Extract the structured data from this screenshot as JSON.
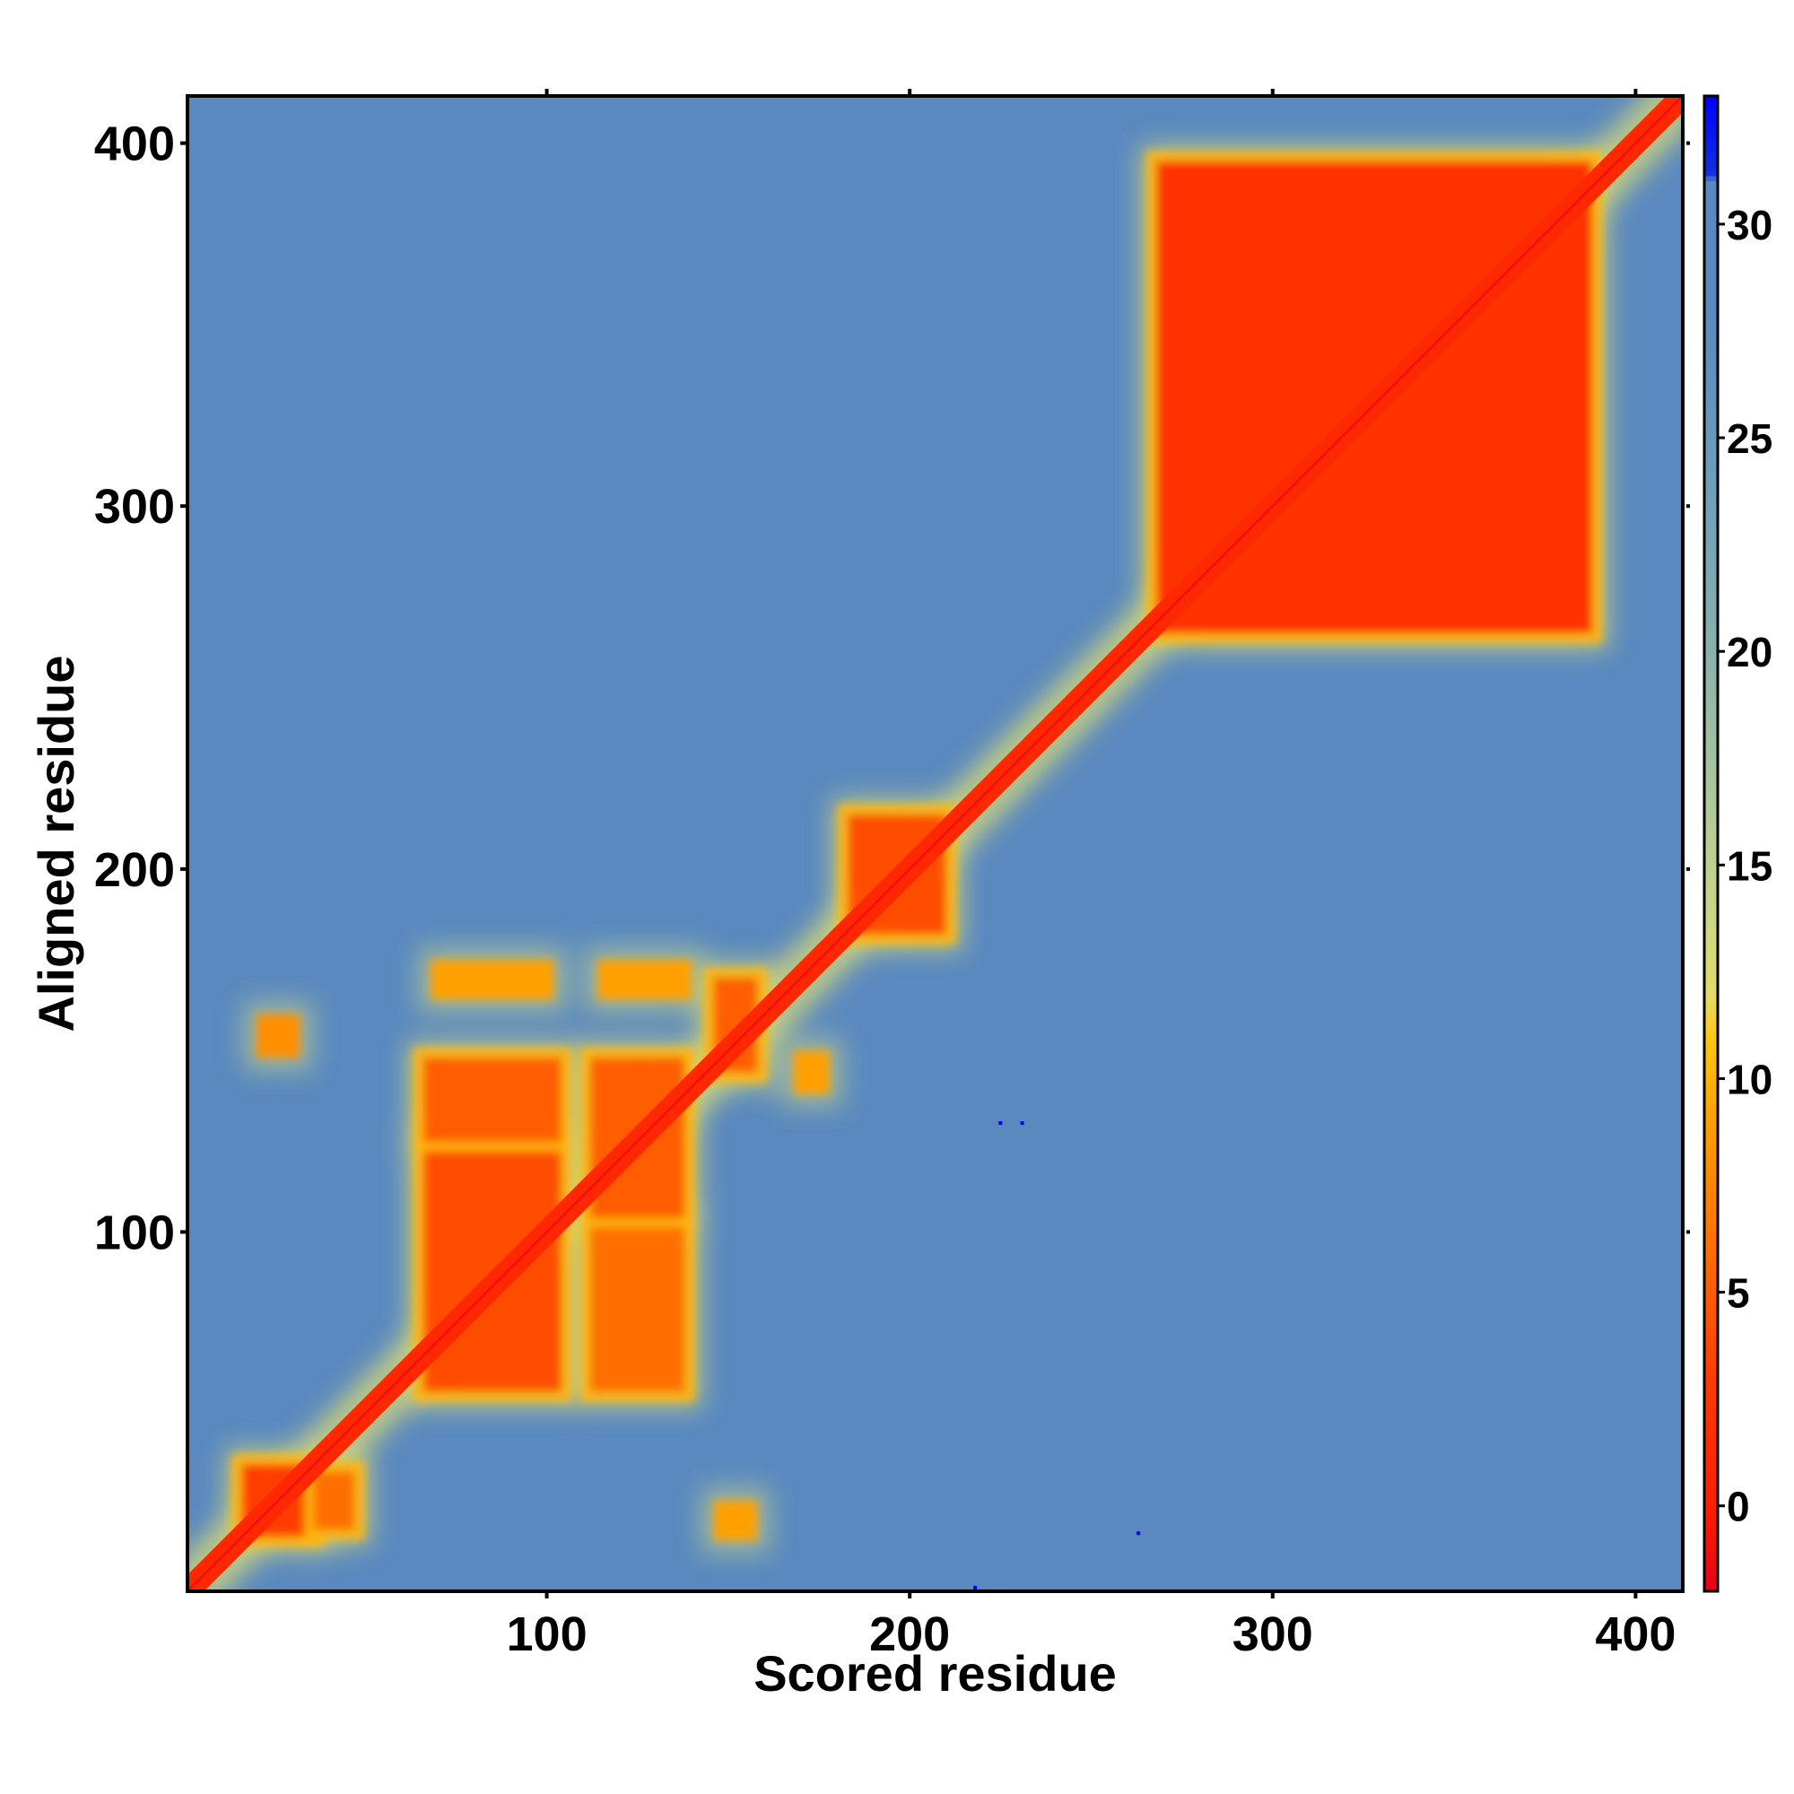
{
  "chart_data": {
    "type": "heatmap",
    "title": "",
    "xlabel": "Scored residue",
    "ylabel": "Aligned residue",
    "xlim": [
      1,
      413
    ],
    "ylim": [
      1,
      413
    ],
    "x_ticks": [
      100,
      200,
      300,
      400
    ],
    "y_ticks": [
      100,
      200,
      300,
      400
    ],
    "colorbar": {
      "range": [
        -2,
        33
      ],
      "ticks": [
        0,
        5,
        10,
        15,
        20,
        25,
        30
      ],
      "colors": [
        {
          "value": -2,
          "color": "#e8001c"
        },
        {
          "value": 0,
          "color": "#ff1e00"
        },
        {
          "value": 3,
          "color": "#ff3c00"
        },
        {
          "value": 6,
          "color": "#ff6e00"
        },
        {
          "value": 9,
          "color": "#ffa000"
        },
        {
          "value": 11,
          "color": "#ffc814"
        },
        {
          "value": 12,
          "color": "#e2dc6a"
        },
        {
          "value": 14,
          "color": "#c9d687"
        },
        {
          "value": 17,
          "color": "#a8c69c"
        },
        {
          "value": 20,
          "color": "#89b2ad"
        },
        {
          "value": 24,
          "color": "#6c9fba"
        },
        {
          "value": 28,
          "color": "#5a89bf"
        },
        {
          "value": 31,
          "color": "#5a88c0"
        },
        {
          "value": 31.2,
          "color": "#1030e0"
        },
        {
          "value": 33,
          "color": "#0000ff"
        }
      ]
    },
    "diagonal_band": {
      "value": 1,
      "min_value": -1
    },
    "domains": [
      {
        "x": [
          16,
          36
        ],
        "y": [
          16,
          36
        ],
        "value": 3
      },
      {
        "x": [
          36,
          47
        ],
        "y": [
          18,
          34
        ],
        "value": 6
      },
      {
        "x": [
          66,
          104
        ],
        "y": [
          56,
          125
        ],
        "value": 4
      },
      {
        "x": [
          66,
          104
        ],
        "y": [
          125,
          148
        ],
        "value": 5
      },
      {
        "x": [
          112,
          138
        ],
        "y": [
          56,
          104
        ],
        "value": 6
      },
      {
        "x": [
          112,
          138
        ],
        "y": [
          104,
          148
        ],
        "value": 5
      },
      {
        "x": [
          146,
          158
        ],
        "y": [
          144,
          170
        ],
        "value": 5
      },
      {
        "x": [
          183,
          210
        ],
        "y": [
          182,
          215
        ],
        "value": 4
      },
      {
        "x": [
          268,
          388
        ],
        "y": [
          265,
          395
        ],
        "value": 2
      }
    ],
    "off_diagonal_patches": [
      {
        "x": [
          68,
          102
        ],
        "y": [
          164,
          175
        ],
        "value": 9
      },
      {
        "x": [
          114,
          140
        ],
        "y": [
          164,
          175
        ],
        "value": 9
      },
      {
        "x": [
          20,
          32
        ],
        "y": [
          148,
          160
        ],
        "value": 8
      },
      {
        "x": [
          168,
          178
        ],
        "y": [
          138,
          150
        ],
        "value": 9
      },
      {
        "x": [
          146,
          158
        ],
        "y": [
          15,
          26
        ],
        "value": 9
      }
    ],
    "outlier_points": [
      {
        "x": 225,
        "y": 130,
        "value": 33
      },
      {
        "x": 231,
        "y": 130,
        "value": 33
      },
      {
        "x": 263,
        "y": 17,
        "value": 33
      },
      {
        "x": 218,
        "y": 2,
        "value": 33
      }
    ]
  }
}
